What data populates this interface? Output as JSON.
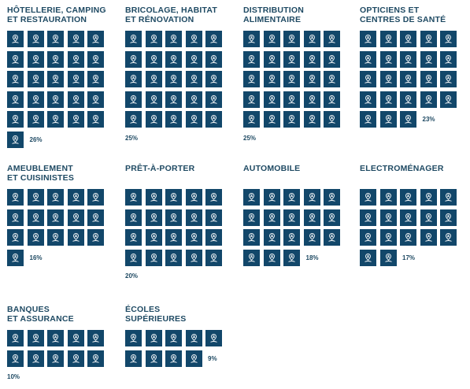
{
  "chart_data": {
    "type": "pictogram",
    "icon": "location-person-icon",
    "colors": {
      "tile": "#12476a",
      "text": "#1f4a63"
    },
    "groups": [
      {
        "title": [
          "HÔTELLERIE, CAMPING",
          "ET RESTAURATION"
        ],
        "value": 26,
        "label": "26%"
      },
      {
        "title": [
          "BRICOLAGE, HABITAT",
          "ET RÉNOVATION"
        ],
        "value": 25,
        "label": "25%"
      },
      {
        "title": [
          "DISTRIBUTION",
          "ALIMENTAIRE"
        ],
        "value": 25,
        "label": "25%"
      },
      {
        "title": [
          "OPTICIENS ET",
          "CENTRES DE SANTÉ"
        ],
        "value": 23,
        "label": "23%"
      },
      {
        "title": [
          "AMEUBLEMENT",
          "ET CUISINISTES"
        ],
        "value": 16,
        "label": "16%"
      },
      {
        "title": [
          "PRÊT-À-PORTER"
        ],
        "value": 20,
        "label": "20%"
      },
      {
        "title": [
          "AUTOMOBILE"
        ],
        "value": 18,
        "label": "18%"
      },
      {
        "title": [
          "ELECTROMÉNAGER"
        ],
        "value": 17,
        "label": "17%"
      },
      {
        "title": [
          "BANQUES",
          "ET ASSURANCE"
        ],
        "value": 10,
        "label": "10%"
      },
      {
        "title": [
          "ÉCOLES",
          "SUPÉRIEURES"
        ],
        "value": 9,
        "label": "9%"
      }
    ]
  }
}
